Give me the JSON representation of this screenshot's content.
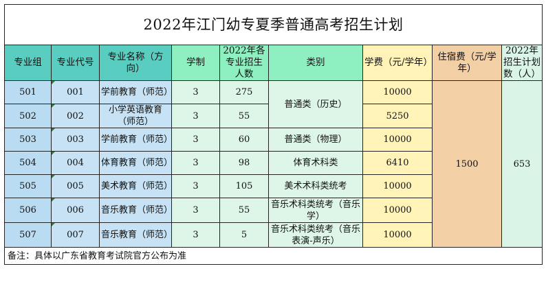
{
  "title": "2022年江门幼专夏季普通高考招生计划",
  "headers": {
    "group": "专业组",
    "code": "专业代号",
    "name": "专业名称（方向）",
    "years": "学制",
    "quota": "2022年各专业招生人数",
    "category": "类别",
    "tuition": "学费（元/学年）",
    "dorm": "住宿费（元/学年）",
    "total": "2022年招生计划数（人）"
  },
  "rows": [
    {
      "group": "501",
      "code": "001",
      "name": "学前教育（师范）",
      "years": "3",
      "quota": "275",
      "tuition": "10000"
    },
    {
      "group": "502",
      "code": "002",
      "name": "小学英语教育（师范）",
      "years": "3",
      "quota": "55",
      "tuition": "5250"
    },
    {
      "group": "503",
      "code": "003",
      "name": "学前教育（师范）",
      "years": "3",
      "quota": "60",
      "tuition": "10000"
    },
    {
      "group": "504",
      "code": "004",
      "name": "体育教育（师范）",
      "years": "3",
      "quota": "98",
      "tuition": "6410"
    },
    {
      "group": "505",
      "code": "005",
      "name": "美术教育（师范）",
      "years": "3",
      "quota": "105",
      "tuition": "10000"
    },
    {
      "group": "506",
      "code": "006",
      "name": "音乐教育（师范）",
      "years": "3",
      "quota": "55",
      "tuition": "10000"
    },
    {
      "group": "507",
      "code": "007",
      "name": "音乐教育（师范）",
      "years": "3",
      "quota": "5",
      "tuition": "10000"
    }
  ],
  "categories": {
    "c1": "普通类（历史）",
    "c2": "普通类（物理）",
    "c3": "体育术科类",
    "c4": "美术术科类统考",
    "c5": "音乐术科类统考（音乐学）",
    "c6": "音乐术科类统考（音乐表演-声乐）"
  },
  "dorm_fee": "1500",
  "total_plan": "653",
  "note": "备注：具体以广东省教育考试院官方公布为准",
  "colors": {
    "blue": "#b9dcf2",
    "teal": "#59cec0",
    "green": "#8ef0c0",
    "yellow": "#fff3b8",
    "tan": "#f3cfa6",
    "mint": "#daf5e8"
  }
}
